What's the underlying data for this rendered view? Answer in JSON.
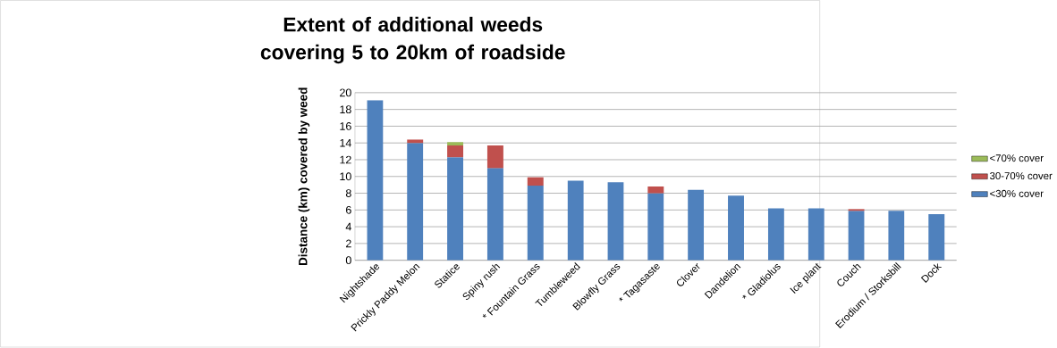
{
  "chart_data": {
    "type": "bar",
    "stacked": true,
    "title": "Extent of additional weeds covering 5 to 20km of roadside",
    "ylabel": "Distance (km) covered by weed",
    "categories": [
      "Nightshade",
      "Prickly Paddy Melon",
      "Statice",
      "Spiny rush",
      "* Fountain Grass",
      "Tumbleweed",
      "Blowfly Grass",
      "* Tagasaste",
      "Clover",
      "Dandelion",
      "* Gladiolus",
      "Ice plant",
      "Couch",
      "Erodium / Storksbill",
      "Dock"
    ],
    "series": [
      {
        "name": "<30% cover",
        "color": "#4f81bd",
        "values": [
          19.1,
          14.0,
          12.3,
          11.0,
          8.9,
          9.5,
          9.3,
          8.0,
          8.4,
          7.7,
          6.2,
          6.2,
          5.9,
          5.9,
          5.5
        ]
      },
      {
        "name": "30-70% cover",
        "color": "#c0504d",
        "values": [
          null,
          0.4,
          1.4,
          2.7,
          1.0,
          null,
          null,
          0.8,
          null,
          null,
          null,
          null,
          0.2,
          null,
          null
        ]
      },
      {
        "name": "<70% cover",
        "color": "#9bbb59",
        "values": [
          null,
          null,
          0.4,
          null,
          null,
          null,
          null,
          null,
          null,
          null,
          null,
          null,
          null,
          null,
          null
        ]
      }
    ],
    "ylim": [
      0,
      20
    ],
    "yticks": [
      0,
      2,
      4,
      6,
      8,
      10,
      12,
      14,
      16,
      18,
      20
    ],
    "grid": "y",
    "legend": "right"
  }
}
